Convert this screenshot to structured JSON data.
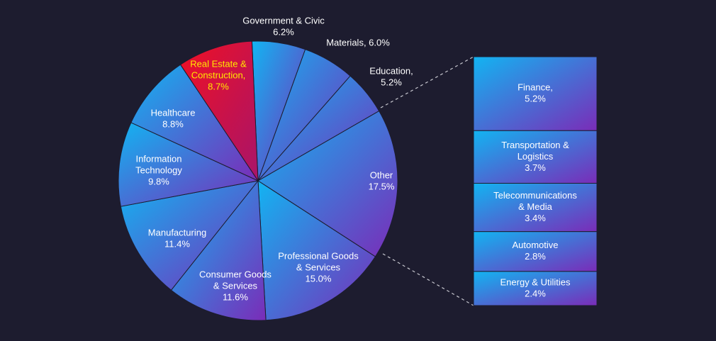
{
  "chart_data": {
    "type": "pie",
    "note_highlight": "Real Estate & Construction",
    "slices": [
      {
        "label": "Government & Civic",
        "value": 6.2,
        "display": [
          "Government & Civic",
          "6.2%"
        ]
      },
      {
        "label": "Materials",
        "value": 6.0,
        "display": [
          "Materials, 6.0%"
        ]
      },
      {
        "label": "Education",
        "value": 5.2,
        "display": [
          "Education,",
          "5.2%"
        ]
      },
      {
        "label": "Other",
        "value": 17.5,
        "display": [
          "Other",
          "17.5%"
        ]
      },
      {
        "label": "Professional Goods & Services",
        "value": 15.0,
        "display": [
          "Professional Goods",
          "& Services",
          "15.0%"
        ]
      },
      {
        "label": "Consumer Goods & Services",
        "value": 11.6,
        "display": [
          "Consumer Goods",
          "& Services",
          "11.6%"
        ]
      },
      {
        "label": "Manufacturing",
        "value": 11.4,
        "display": [
          "Manufacturing",
          "11.4%"
        ]
      },
      {
        "label": "Information Technology",
        "value": 9.8,
        "display": [
          "Information",
          "Technology",
          "9.8%"
        ]
      },
      {
        "label": "Healthcare",
        "value": 8.8,
        "display": [
          "Healthcare",
          "8.8%"
        ]
      },
      {
        "label": "Real Estate & Construction",
        "value": 8.7,
        "display": [
          "Real Estate &",
          "Construction,",
          "8.7%"
        ],
        "highlight": true
      }
    ],
    "breakdown": [
      {
        "label": "Finance",
        "value": 5.2,
        "display": [
          "Finance,",
          "5.2%"
        ]
      },
      {
        "label": "Transportation & Logistics",
        "value": 3.7,
        "display": [
          "Transportation &",
          "Logistics",
          "3.7%"
        ]
      },
      {
        "label": "Telecommunications & Media",
        "value": 3.4,
        "display": [
          "Telecommunications",
          "& Media",
          "3.4%"
        ]
      },
      {
        "label": "Automotive",
        "value": 2.8,
        "display": [
          "Automotive",
          "2.8%"
        ]
      },
      {
        "label": "Energy & Utilities",
        "value": 2.4,
        "display": [
          "Energy & Utilities",
          "2.4%"
        ]
      }
    ]
  },
  "colors": {
    "background": "#1d1c2f",
    "slice_start": "#12b4f2",
    "slice_end": "#7a2cb8",
    "highlight_start": "#f01023",
    "highlight_end": "#a8146a",
    "label_text": "#ffffff",
    "highlight_text": "#ffe800",
    "connector": "#c8c8d0"
  }
}
